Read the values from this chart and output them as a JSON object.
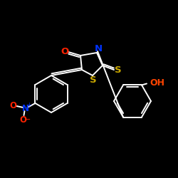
{
  "bg_color": "#000000",
  "bond_color": "#ffffff",
  "atom_colors": {
    "O": "#ff2200",
    "N_ring": "#0033ff",
    "N_no2": "#0033ff",
    "S": "#ccaa00",
    "OH": "#ff4400"
  },
  "figsize": [
    2.5,
    2.5
  ],
  "dpi": 100,
  "lw": 1.4
}
